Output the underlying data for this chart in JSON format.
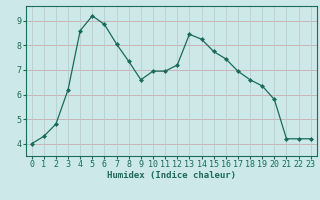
{
  "x": [
    0,
    1,
    2,
    3,
    4,
    5,
    6,
    7,
    8,
    9,
    10,
    11,
    12,
    13,
    14,
    15,
    16,
    17,
    18,
    19,
    20,
    21,
    22,
    23
  ],
  "y": [
    4.0,
    4.3,
    4.8,
    6.2,
    8.6,
    9.2,
    8.85,
    8.05,
    7.35,
    6.6,
    6.95,
    6.95,
    7.2,
    8.45,
    8.25,
    7.75,
    7.45,
    6.95,
    6.6,
    6.35,
    5.8,
    4.2,
    4.2,
    4.2
  ],
  "line_color": "#1a6b5a",
  "marker": "D",
  "marker_size": 2.0,
  "bg_color": "#cce8e8",
  "grid_color_h": "#c8a0a0",
  "grid_color_v": "#b8c8c8",
  "xlabel": "Humidex (Indice chaleur)",
  "xlim": [
    -0.5,
    23.5
  ],
  "ylim": [
    3.5,
    9.6
  ],
  "yticks": [
    4,
    5,
    6,
    7,
    8,
    9
  ],
  "xticks": [
    0,
    1,
    2,
    3,
    4,
    5,
    6,
    7,
    8,
    9,
    10,
    11,
    12,
    13,
    14,
    15,
    16,
    17,
    18,
    19,
    20,
    21,
    22,
    23
  ],
  "axis_color": "#1a6b5a",
  "label_fontsize": 6.5,
  "tick_fontsize": 6.0
}
